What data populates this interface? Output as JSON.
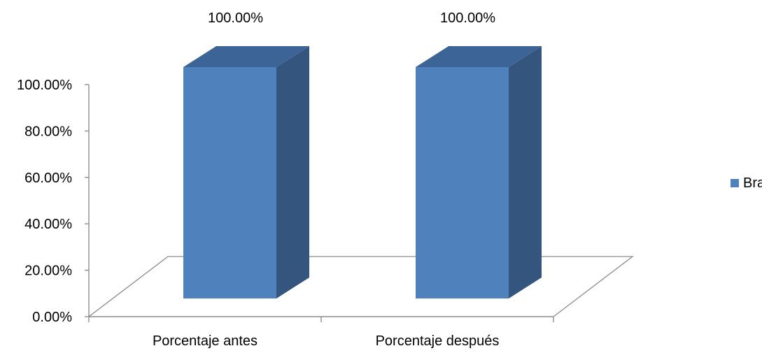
{
  "chart_data": {
    "type": "bar",
    "style": "3d-column",
    "categories": [
      "Porcentaje antes",
      "Porcentaje después"
    ],
    "series": [
      {
        "name": "Braden",
        "values": [
          100.0,
          100.0
        ],
        "data_labels": [
          "100.00%",
          "100.00%"
        ],
        "color": "#4F81BD",
        "side_color": "#34557D",
        "top_color": "#3C6496"
      }
    ],
    "yticks": [
      0,
      20,
      40,
      60,
      80,
      100
    ],
    "ytick_labels": [
      "0.00%",
      "20.00%",
      "40.00%",
      "60.00%",
      "80.00%",
      "100.00%"
    ],
    "ylim": [
      0,
      100
    ],
    "grid": false,
    "legend_position": "right",
    "axis_color": "#868686",
    "floor_color": "#8C8C8C"
  }
}
